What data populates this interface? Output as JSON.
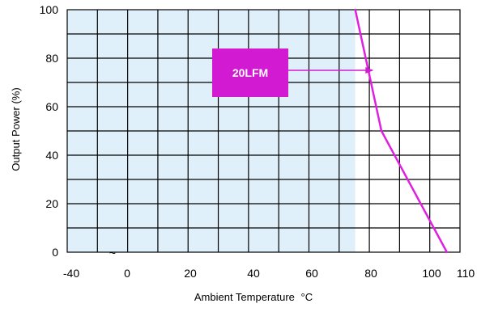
{
  "chart_data": {
    "type": "line",
    "title": "",
    "xlabel": "Ambient Temperature",
    "xlabel_unit": "°C",
    "ylabel": "Output Power  (%)",
    "xlim": [
      -40,
      110
    ],
    "ylim": [
      0,
      100
    ],
    "x_ticks": [
      -40,
      0,
      20,
      40,
      60,
      80,
      100,
      110
    ],
    "x_tick_labels": [
      "-40",
      "0",
      "20",
      "40",
      "60",
      "80",
      "100",
      "110"
    ],
    "y_ticks": [
      0,
      20,
      40,
      60,
      80,
      100
    ],
    "y_tick_labels": [
      "0",
      "20",
      "40",
      "60",
      "80",
      "100"
    ],
    "axis_break_marker": "~",
    "grid": true,
    "shaded_region": {
      "x": [
        -40,
        70
      ],
      "y": [
        0,
        100
      ],
      "color": "#dff0fb"
    },
    "series": [
      {
        "name": "20LFM",
        "color": "#e020e0",
        "x": [
          70,
          80,
          105
        ],
        "y": [
          100,
          50,
          0
        ]
      }
    ],
    "annotation": {
      "text": "20LFM",
      "box_color": "#d21ad2",
      "arrow_target": {
        "x": 77,
        "y": 75
      }
    }
  }
}
